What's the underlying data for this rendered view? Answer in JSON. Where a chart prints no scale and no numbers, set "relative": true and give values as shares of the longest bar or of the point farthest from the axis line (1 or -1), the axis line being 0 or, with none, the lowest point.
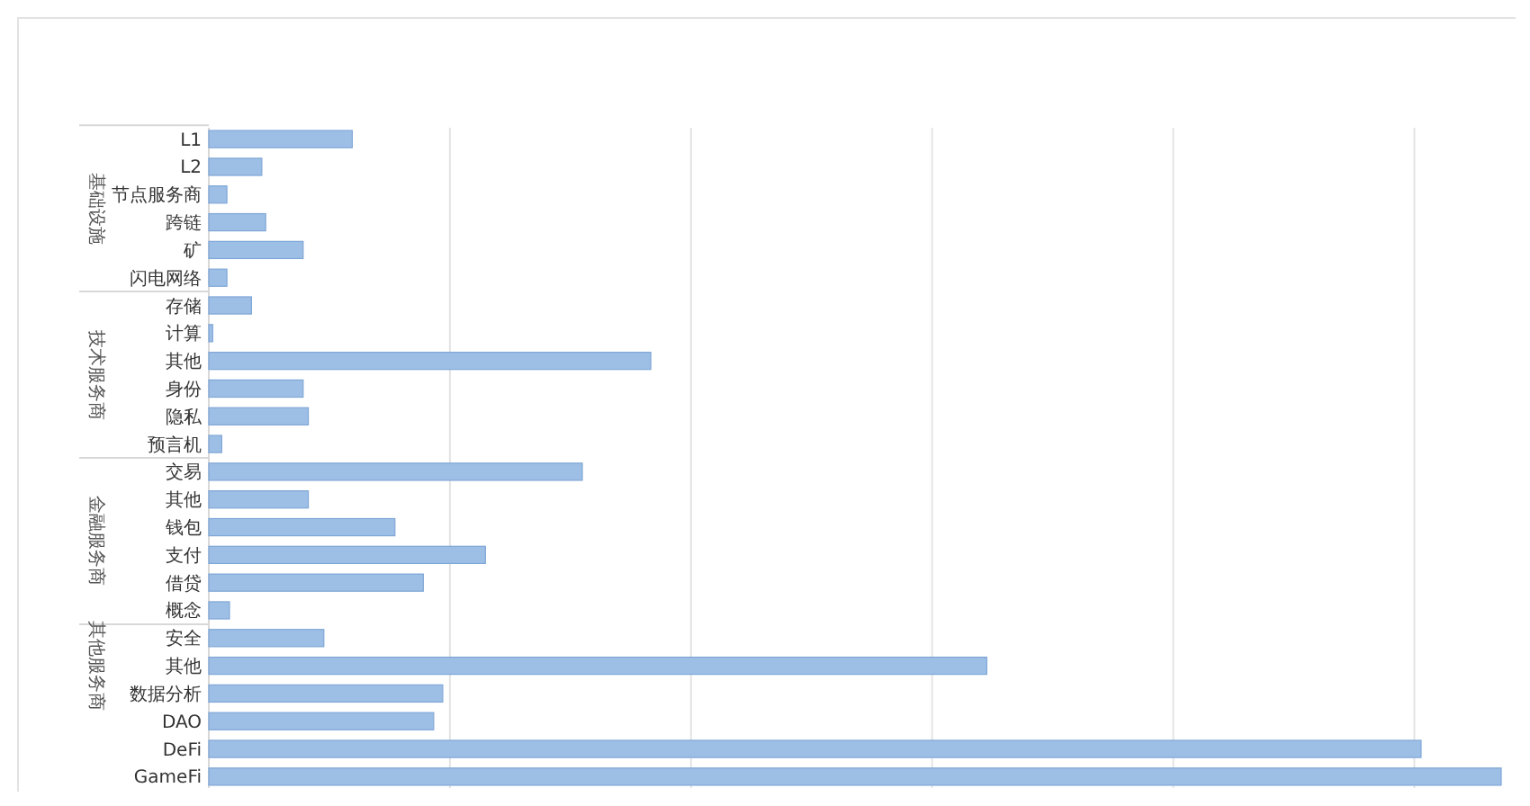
{
  "chart_data": {
    "type": "bar",
    "orientation": "horizontal",
    "relative": true,
    "grid": "x",
    "categories": [
      "L1",
      "L2",
      "节点服务商",
      "跨链",
      "矿",
      "闪电网络",
      "存储",
      "计算",
      "其他",
      "身份",
      "隐私",
      "预言机",
      "交易",
      "其他",
      "钱包",
      "支付",
      "借贷",
      "概念",
      "安全",
      "其他",
      "数据分析",
      "DAO",
      "DeFi",
      "GameFi"
    ],
    "values": [
      0.111,
      0.041,
      0.014,
      0.044,
      0.073,
      0.014,
      0.033,
      0.003,
      0.342,
      0.073,
      0.077,
      0.01,
      0.289,
      0.077,
      0.144,
      0.214,
      0.166,
      0.016,
      0.089,
      0.602,
      0.181,
      0.174,
      0.938,
      1
    ],
    "color": "#9dbfe6",
    "annotations": [
      "基础设施",
      "技术服务商",
      "金融服务商",
      "其他服务商"
    ]
  }
}
